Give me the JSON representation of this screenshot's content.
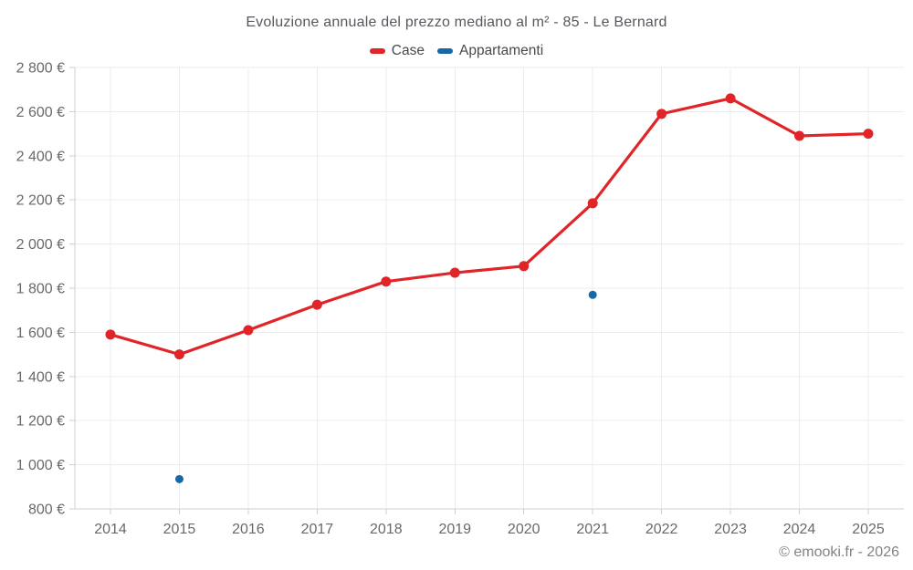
{
  "footer": "© emooki.fr - 2026",
  "colors": {
    "case_red": "#e02427",
    "appartamenti_blue": "#1769a6",
    "grid": "#ececec",
    "axis": "#cdd0d2",
    "tick_text": "#67696d",
    "title_text": "#55585c",
    "footer_text": "#808387",
    "background": "#ffffff"
  },
  "chart_data": {
    "type": "line",
    "title": "Evoluzione annuale del prezzo mediano al m² - 85 - Le Bernard",
    "xlabel": "",
    "ylabel": "",
    "categories": [
      "2014",
      "2015",
      "2016",
      "2017",
      "2018",
      "2019",
      "2020",
      "2021",
      "2022",
      "2023",
      "2024",
      "2025"
    ],
    "series": [
      {
        "name": "Case",
        "color": "#e02427",
        "values": [
          1590,
          1500,
          1610,
          1725,
          1830,
          1870,
          1900,
          2185,
          2590,
          2660,
          2490,
          2500
        ]
      },
      {
        "name": "Appartamenti",
        "color": "#1769a6",
        "values": [
          null,
          935,
          null,
          null,
          null,
          null,
          null,
          1770,
          null,
          null,
          null,
          null
        ]
      }
    ],
    "ylim": [
      800,
      2800
    ],
    "ytick_step": 200,
    "yticks": [
      800,
      1000,
      1200,
      1400,
      1600,
      1800,
      2000,
      2200,
      2400,
      2600,
      2800
    ],
    "ytick_labels": [
      "800 €",
      "1 000 €",
      "1 200 €",
      "1 400 €",
      "1 600 €",
      "1 800 €",
      "2 000 €",
      "2 200 €",
      "2 400 €",
      "2 600 €",
      "2 800 €"
    ],
    "grid": true,
    "legend_position": "top"
  }
}
